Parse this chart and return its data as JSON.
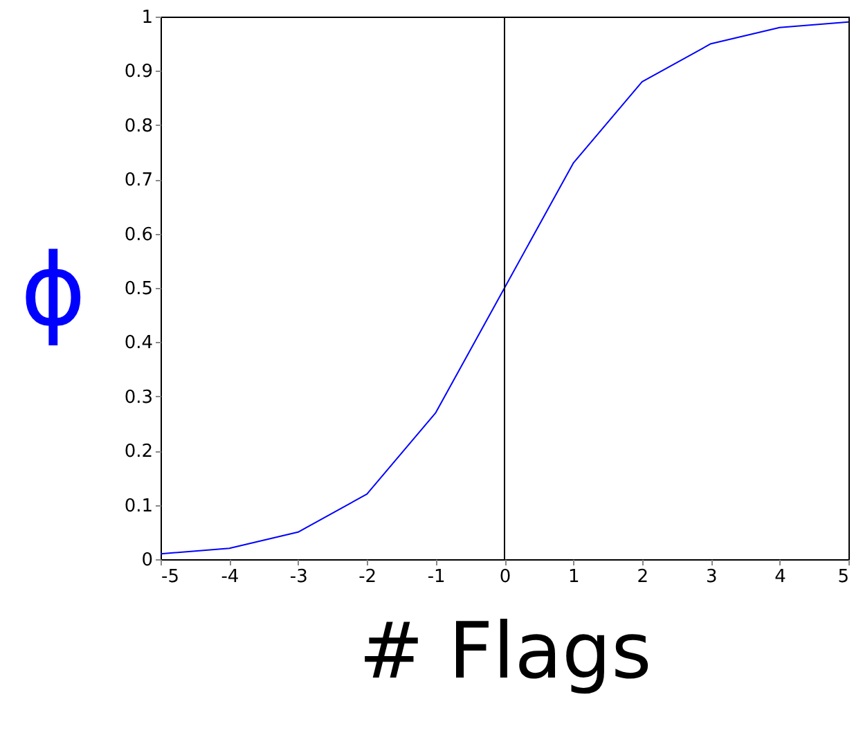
{
  "chart_data": {
    "type": "line",
    "xlabel": "# Flags",
    "ylabel": "ϕ",
    "x": [
      -5,
      -4,
      -3,
      -2,
      -1,
      0,
      1,
      2,
      3,
      4,
      5
    ],
    "series": [
      {
        "color": "#0000ff",
        "values": [
          0.01,
          0.02,
          0.05,
          0.12,
          0.27,
          0.5,
          0.73,
          0.88,
          0.95,
          0.98,
          0.99
        ]
      }
    ],
    "xlim": [
      -5,
      5
    ],
    "xticks": [
      -5,
      -4,
      -3,
      -2,
      -1,
      0,
      1,
      2,
      3,
      4,
      5
    ],
    "ylim": [
      0,
      1
    ],
    "yticks": [
      0,
      0.1,
      0.2,
      0.3,
      0.4,
      0.5,
      0.6,
      0.7,
      0.8,
      0.9,
      1
    ],
    "ref_lines": [
      {
        "axis": "x",
        "value": 0,
        "color": "#000000"
      }
    ],
    "grid": false,
    "marker": "none",
    "line_style": "solid"
  }
}
